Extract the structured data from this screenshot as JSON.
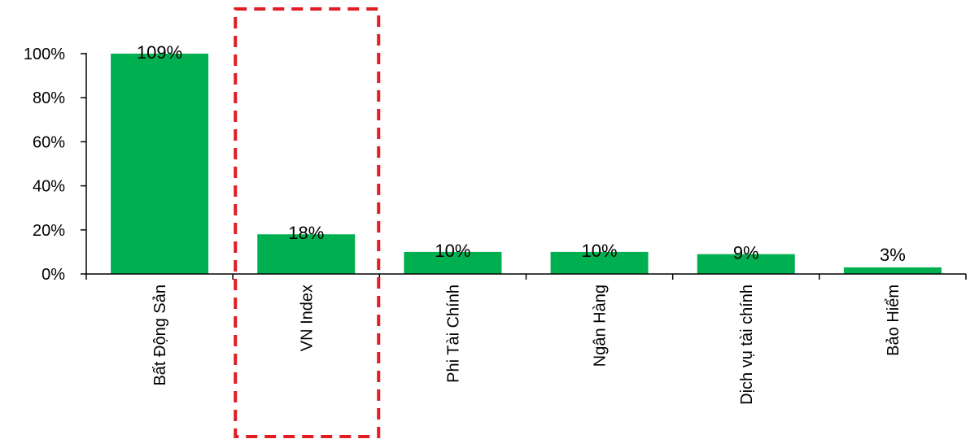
{
  "chart_data": {
    "type": "bar",
    "categories": [
      "Bất Động Sản",
      "VN Index",
      "Phi Tài Chính",
      "Ngân Hàng",
      "Dịch vụ tài chính",
      "Bảo Hiểm"
    ],
    "values": [
      109,
      18,
      10,
      10,
      9,
      3
    ],
    "data_labels": [
      "109%",
      "18%",
      "10%",
      "10%",
      "9%",
      "3%"
    ],
    "y_tick_labels": [
      "0%",
      "20%",
      "40%",
      "60%",
      "80%",
      "100%"
    ],
    "y_ticks": [
      0,
      20,
      40,
      60,
      80,
      100
    ],
    "ylim": [
      0,
      100
    ],
    "grid": false,
    "legend": "none",
    "bar_color": "#00b050",
    "highlight": {
      "category": "VN Index",
      "style": "dashed-box",
      "color": "#e31b23"
    }
  }
}
